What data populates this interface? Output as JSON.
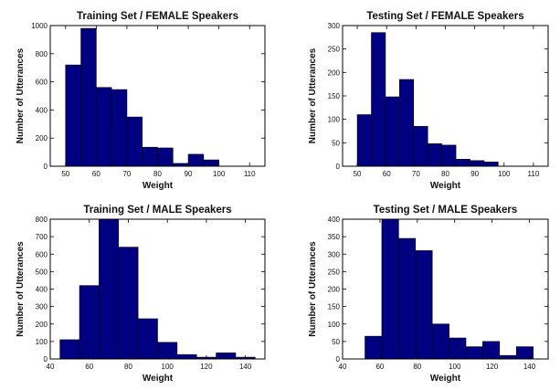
{
  "chart_data": [
    {
      "type": "bar",
      "title": "Training Set / FEMALE Speakers",
      "xlabel": "Weight",
      "ylabel": "Number of Utterances",
      "xlim": [
        45,
        115
      ],
      "ylim": [
        0,
        1000
      ],
      "xticks": [
        50,
        60,
        70,
        80,
        90,
        100,
        110
      ],
      "yticks": [
        0,
        200,
        400,
        600,
        800,
        1000
      ],
      "bin_edges": [
        50,
        55,
        60,
        65,
        70,
        75,
        80,
        85,
        90,
        95,
        100,
        105,
        110
      ],
      "values": [
        720,
        980,
        560,
        545,
        350,
        135,
        130,
        20,
        85,
        45,
        0,
        0
      ],
      "grid": false,
      "color": "#000080"
    },
    {
      "type": "bar",
      "title": "Testing Set / FEMALE Speakers",
      "xlabel": "Weight",
      "ylabel": "Number of Utterances",
      "xlim": [
        45,
        115
      ],
      "ylim": [
        0,
        300
      ],
      "xticks": [
        50,
        60,
        70,
        80,
        90,
        100,
        110
      ],
      "yticks": [
        0,
        50,
        100,
        150,
        200,
        250,
        300
      ],
      "bin_edges": [
        50,
        54.8,
        59.6,
        64.4,
        69.2,
        74,
        78.8,
        83.6,
        88.4,
        93.2,
        98,
        102.8,
        107.6
      ],
      "values": [
        110,
        285,
        148,
        185,
        85,
        48,
        45,
        15,
        12,
        9,
        0,
        0
      ],
      "grid": false,
      "color": "#000080"
    },
    {
      "type": "bar",
      "title": "Training Set / MALE Speakers",
      "xlabel": "Weight",
      "ylabel": "Number of Utterances",
      "xlim": [
        40,
        150
      ],
      "ylim": [
        0,
        800
      ],
      "xticks": [
        40,
        60,
        80,
        100,
        120,
        140
      ],
      "yticks": [
        0,
        100,
        200,
        300,
        400,
        500,
        600,
        700,
        800
      ],
      "bin_edges": [
        45,
        55,
        65,
        75,
        85,
        95,
        105,
        115,
        125,
        135,
        145
      ],
      "values": [
        110,
        420,
        800,
        640,
        230,
        95,
        25,
        10,
        35,
        10
      ],
      "grid": false,
      "color": "#000080"
    },
    {
      "type": "bar",
      "title": "Testing Set / MALE Speakers",
      "xlabel": "Weight",
      "ylabel": "Number of Utterances",
      "xlim": [
        40,
        150
      ],
      "ylim": [
        0,
        400
      ],
      "xticks": [
        40,
        60,
        80,
        100,
        120,
        140
      ],
      "yticks": [
        0,
        50,
        100,
        150,
        200,
        250,
        300,
        350,
        400
      ],
      "bin_edges": [
        52,
        61,
        70,
        79,
        88,
        97,
        106,
        115,
        124,
        133,
        142
      ],
      "values": [
        65,
        400,
        345,
        310,
        100,
        60,
        35,
        50,
        10,
        35
      ],
      "grid": false,
      "color": "#000080"
    }
  ]
}
